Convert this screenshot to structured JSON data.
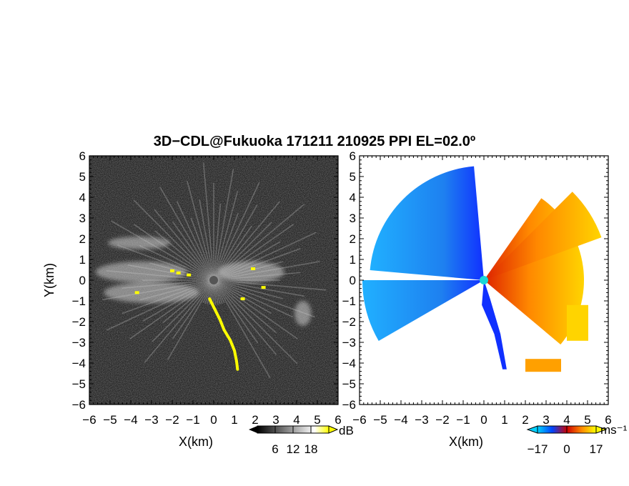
{
  "title": "3D−CDL@Fukuoka 171211 210925 PPI EL=02.0º",
  "chart_data": [
    {
      "type": "heatmap",
      "panel": "reflectivity",
      "xlabel": "X(km)",
      "ylabel": "Y(km)",
      "xlim": [
        -6,
        6
      ],
      "ylim": [
        -6,
        6
      ],
      "xticks": [
        "−6",
        "−5",
        "−4",
        "−3",
        "−2",
        "−1",
        "0",
        "1",
        "2",
        "3",
        "4",
        "5",
        "6"
      ],
      "yticks": [
        "−6",
        "−5",
        "−4",
        "−3",
        "−2",
        "−1",
        "0",
        "1",
        "2",
        "3",
        "4",
        "5",
        "6"
      ],
      "colorbar": {
        "unit": "dB",
        "ticks": [
          "6",
          "12",
          "18"
        ],
        "range": [
          0,
          24
        ],
        "colors": [
          "#000000",
          "#ffffff",
          "#ffff00"
        ]
      },
      "background": "#262626",
      "echo_regions_km": [
        {
          "x": -3.6,
          "y": 1.8,
          "rx": 1.5,
          "ry": 0.3
        },
        {
          "x": -3.5,
          "y": 0.4,
          "rx": 2.2,
          "ry": 0.5
        },
        {
          "x": -3.0,
          "y": -0.6,
          "rx": 2.3,
          "ry": 0.5
        },
        {
          "x": 1.8,
          "y": 0.4,
          "rx": 1.6,
          "ry": 0.5
        },
        {
          "x": 4.3,
          "y": -1.6,
          "rx": 0.4,
          "ry": 0.6
        }
      ],
      "high_echo_track_km": [
        [
          -0.2,
          -0.9
        ],
        [
          0.0,
          -1.3
        ],
        [
          0.3,
          -1.9
        ],
        [
          0.5,
          -2.4
        ],
        [
          0.8,
          -2.9
        ],
        [
          1.0,
          -3.4
        ],
        [
          1.1,
          -3.9
        ],
        [
          1.15,
          -4.3
        ]
      ]
    },
    {
      "type": "heatmap",
      "panel": "doppler_velocity",
      "xlabel": "X(km)",
      "xlim": [
        -6,
        6
      ],
      "ylim": [
        -6,
        6
      ],
      "xticks": [
        "−6",
        "−5",
        "−4",
        "−3",
        "−2",
        "−1",
        "0",
        "1",
        "2",
        "3",
        "4",
        "5",
        "6"
      ],
      "yticks": [
        "−6",
        "−5",
        "−4",
        "−3",
        "−2",
        "−1",
        "0",
        "1",
        "2",
        "3",
        "4",
        "5",
        "6"
      ],
      "colorbar": {
        "unit": "ms⁻¹",
        "ticks": [
          "−17",
          "0",
          "17"
        ],
        "range": [
          -17,
          17
        ],
        "colors": [
          "#00d0ff",
          "#0044ff",
          "#cc0000",
          "#ff8800",
          "#ffff00"
        ]
      },
      "negative_sector_color": "#1e9cf0",
      "positive_sector_color": "#ff7a10"
    }
  ]
}
